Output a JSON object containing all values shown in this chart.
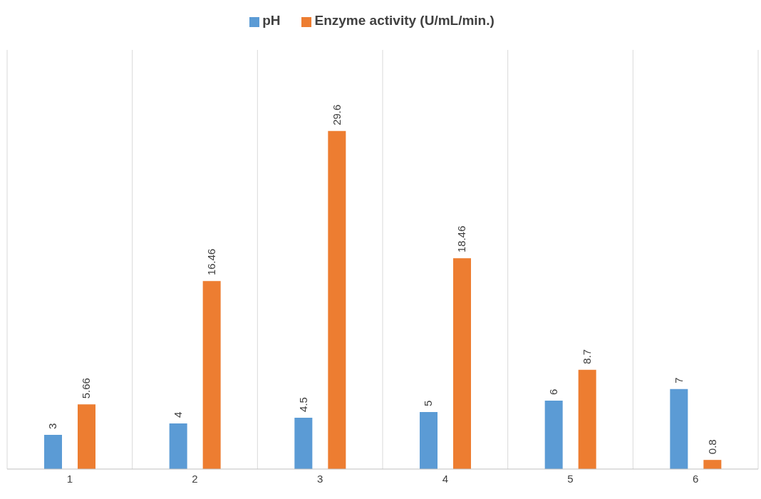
{
  "chart_data": {
    "type": "bar",
    "categories": [
      "1",
      "2",
      "3",
      "4",
      "5",
      "6"
    ],
    "series": [
      {
        "name": "pH",
        "color": "#5b9bd5",
        "values": [
          3,
          4,
          4.5,
          5,
          6,
          7
        ]
      },
      {
        "name": "Enzyme activity  (U/mL/min.)",
        "color": "#ed7d31",
        "values": [
          5.66,
          16.46,
          29.6,
          18.46,
          8.7,
          0.8
        ]
      }
    ],
    "data_labels": true,
    "grid": "x",
    "legend": "top"
  }
}
